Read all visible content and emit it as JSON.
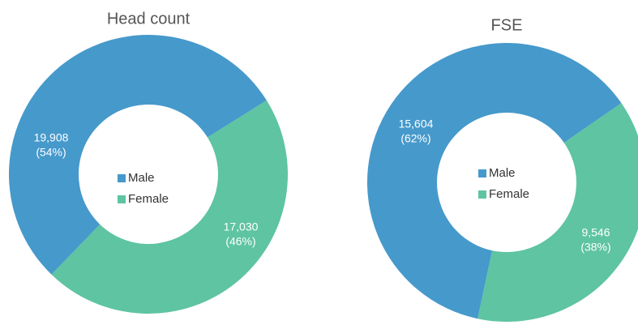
{
  "chart_data": [
    {
      "type": "donut",
      "title": "Head count",
      "categories": [
        "Male",
        "Female"
      ],
      "values": [
        19908,
        17030
      ],
      "value_labels": [
        "19,908",
        "17,030"
      ],
      "percent_labels": [
        "(54%)",
        "(46%)"
      ],
      "colors": [
        "#4699cb",
        "#5ec4a2"
      ]
    },
    {
      "type": "donut",
      "title": "FSE",
      "categories": [
        "Male",
        "Female"
      ],
      "values": [
        15604,
        9546
      ],
      "value_labels": [
        "15,604",
        "9,546"
      ],
      "percent_labels": [
        "(62%)",
        "(38%)"
      ],
      "colors": [
        "#4699cb",
        "#5ec4a2"
      ]
    }
  ]
}
